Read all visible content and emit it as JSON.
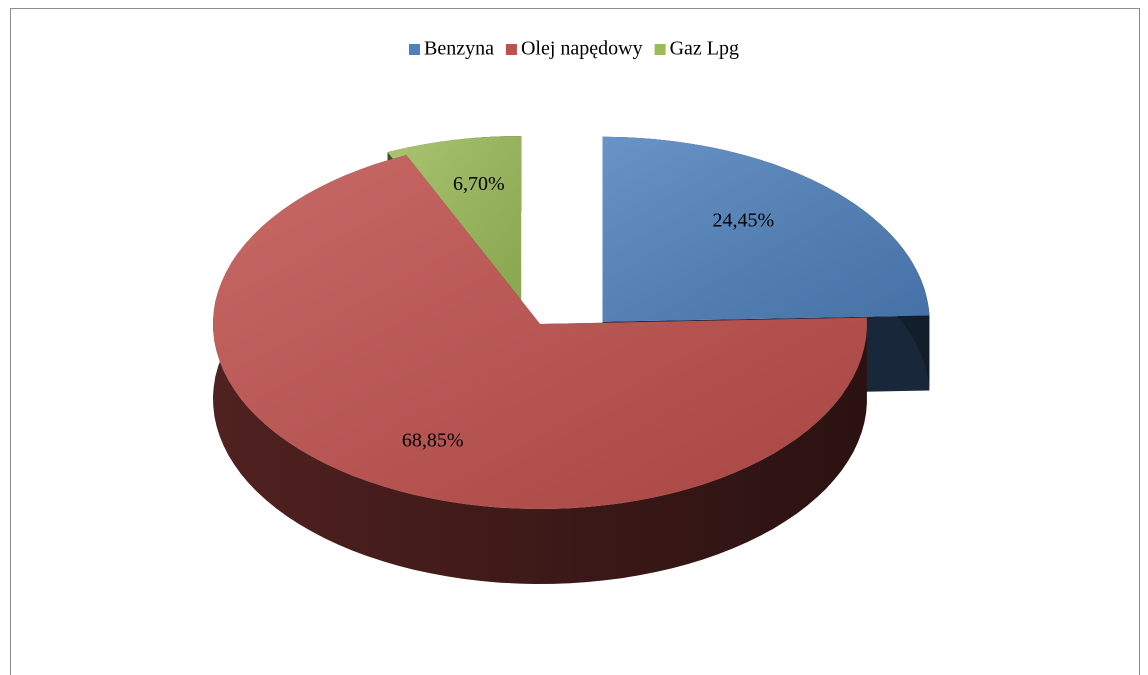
{
  "chart_data": {
    "type": "pie",
    "categories": [
      "Benzyna",
      "Olej napędowy",
      "Gaz Lpg"
    ],
    "values": [
      24.45,
      68.85,
      6.7
    ],
    "value_labels": [
      "24,45%",
      "68,85%",
      "6,70%"
    ],
    "colors": [
      "#4f81bd",
      "#c0504d",
      "#9bbb59"
    ],
    "legend": "top"
  }
}
